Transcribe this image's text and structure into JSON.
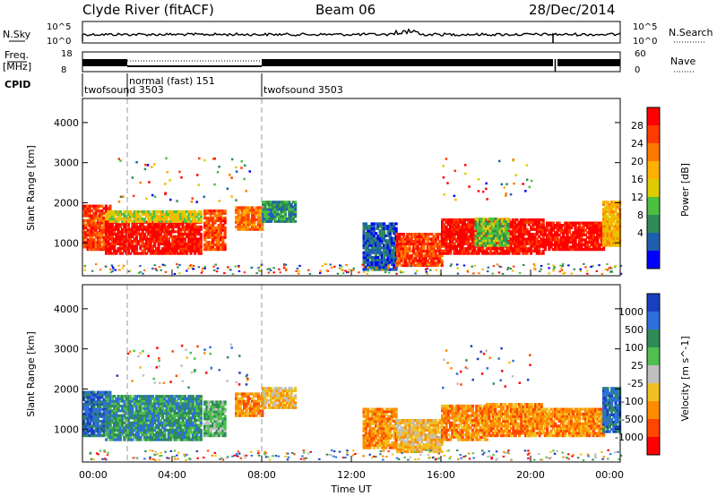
{
  "header": {
    "station": "Clyde River (fitACF)",
    "beam": "Beam 06",
    "date": "28/Dec/2014"
  },
  "status_panel": {
    "nsky_label": "N.Sky",
    "nsky_ticks": [
      "10^5",
      "10^0"
    ],
    "nsearch_label": "N.Search",
    "freq_label_1": "Freq.",
    "freq_label_2": "[MHz]",
    "freq_ticks": [
      "18",
      "8"
    ],
    "nave_ticks": [
      "60",
      "0"
    ],
    "nave_label": "Nave",
    "cpid_label": "CPID",
    "cpid_entries": [
      {
        "name": "twofsound 3503",
        "start_hr": 0
      },
      {
        "name": "normal (fast) 151",
        "start_hr": 2
      },
      {
        "name": "twofsound 3503",
        "start_hr": 8
      }
    ]
  },
  "chart_data": [
    {
      "type": "heatmap",
      "name": "power",
      "ylabel": "Slant Range [km]",
      "ylim": [
        180,
        4600
      ],
      "yticks": [
        1000,
        2000,
        3000,
        4000
      ],
      "xlim": [
        0,
        24
      ],
      "colorbar_label": "Power [dB]",
      "colorbar_ticks": [
        "28",
        "24",
        "20",
        "16",
        "12",
        "8",
        "4"
      ],
      "colorbar_colors": [
        "#ff0000",
        "#ff3a00",
        "#ff7a00",
        "#ffb000",
        "#dccc00",
        "#4cc040",
        "#2e8b57",
        "#1f5fb0",
        "#0000ff"
      ],
      "regions": [
        {
          "t0": 0.0,
          "t1": 1.2,
          "r0": 800,
          "r1": 1900,
          "level": 1
        },
        {
          "t0": 1.0,
          "t1": 5.3,
          "r0": 700,
          "r1": 1500,
          "level": 0
        },
        {
          "t0": 1.0,
          "t1": 5.3,
          "r0": 1500,
          "r1": 1800,
          "level": 4
        },
        {
          "t0": 5.4,
          "t1": 6.3,
          "r0": 800,
          "r1": 1800,
          "level": 1
        },
        {
          "t0": 6.8,
          "t1": 8.0,
          "r0": 1300,
          "r1": 1900,
          "level": 2
        },
        {
          "t0": 8.0,
          "t1": 9.5,
          "r0": 1500,
          "r1": 2000,
          "level": 6
        },
        {
          "t0": 12.5,
          "t1": 14.0,
          "r0": 300,
          "r1": 1500,
          "level": 7
        },
        {
          "t0": 14.0,
          "t1": 16.0,
          "r0": 400,
          "r1": 1200,
          "level": 1
        },
        {
          "t0": 16.0,
          "t1": 20.5,
          "r0": 700,
          "r1": 1600,
          "level": 0
        },
        {
          "t0": 17.5,
          "t1": 19.0,
          "r0": 900,
          "r1": 1600,
          "level": 5
        },
        {
          "t0": 20.5,
          "t1": 23.2,
          "r0": 800,
          "r1": 1500,
          "level": 0
        },
        {
          "t0": 23.2,
          "t1": 24.0,
          "r0": 900,
          "r1": 2000,
          "level": 3
        }
      ]
    },
    {
      "type": "heatmap",
      "name": "velocity",
      "xlabel": "Time UT",
      "ylabel": "Slant Range [km]",
      "ylim": [
        180,
        4600
      ],
      "yticks": [
        1000,
        2000,
        3000,
        4000
      ],
      "xlim": [
        0,
        24
      ],
      "xticks": [
        "00:00",
        "04:00",
        "08:00",
        "12:00",
        "16:00",
        "20:00",
        "00:00"
      ],
      "colorbar_label": "Velocity [m s^-1]",
      "colorbar_ticks": [
        "1000",
        "500",
        "100",
        "25",
        "-25",
        "-100",
        "-500",
        "-1000"
      ],
      "colorbar_colors": [
        "#1a3fbf",
        "#2e6fdd",
        "#2e8b57",
        "#4fbf4f",
        "#bfbfbf",
        "#f0c020",
        "#ff8c00",
        "#ff4500",
        "#ff0000"
      ],
      "regions": [
        {
          "t0": 0.0,
          "t1": 1.2,
          "r0": 800,
          "r1": 1900,
          "level": 1
        },
        {
          "t0": 1.0,
          "t1": 5.3,
          "r0": 700,
          "r1": 1800,
          "level": 2
        },
        {
          "t0": 5.4,
          "t1": 6.3,
          "r0": 800,
          "r1": 1700,
          "level": 3
        },
        {
          "t0": 6.8,
          "t1": 8.0,
          "r0": 1300,
          "r1": 1900,
          "level": 6
        },
        {
          "t0": 8.0,
          "t1": 9.5,
          "r0": 1500,
          "r1": 2000,
          "level": 5
        },
        {
          "t0": 12.5,
          "t1": 14.0,
          "r0": 500,
          "r1": 1500,
          "level": 6
        },
        {
          "t0": 14.0,
          "t1": 16.0,
          "r0": 400,
          "r1": 1200,
          "level": 5
        },
        {
          "t0": 16.0,
          "t1": 18.0,
          "r0": 700,
          "r1": 1600,
          "level": 6
        },
        {
          "t0": 18.0,
          "t1": 20.5,
          "r0": 800,
          "r1": 1600,
          "level": 6
        },
        {
          "t0": 20.5,
          "t1": 23.2,
          "r0": 800,
          "r1": 1500,
          "level": 6
        },
        {
          "t0": 23.2,
          "t1": 24.0,
          "r0": 900,
          "r1": 2000,
          "level": 1
        }
      ]
    }
  ]
}
